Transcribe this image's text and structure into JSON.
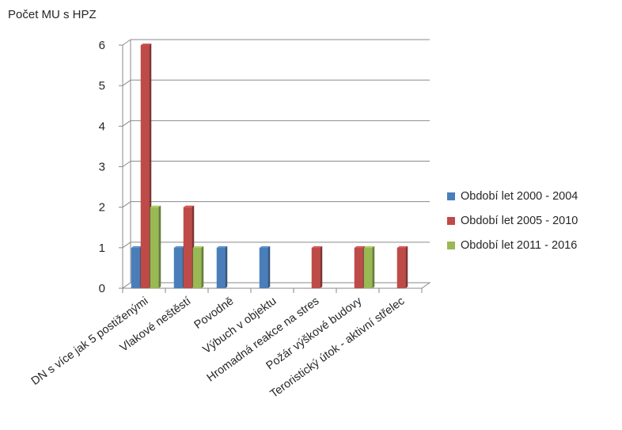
{
  "chart_data": {
    "type": "bar",
    "ylabel": "Počet MU s HPZ",
    "ylim": [
      0,
      6
    ],
    "yticks": [
      "0",
      "1",
      "2",
      "3",
      "4",
      "5",
      "6"
    ],
    "grid": true,
    "legend_position": "right",
    "categories": [
      "DN s více jak 5 postiženými",
      "Vlakové neštěstí",
      "Povodně",
      "Výbuch v objektu",
      "Hromadná reakce na stres",
      "Požár výškové budovy",
      "Teroristický útok - aktivní střelec"
    ],
    "series": [
      {
        "name": "Období let 2000 - 2004",
        "color": "#4a7ebb",
        "values": [
          1,
          1,
          1,
          1,
          0,
          0,
          0
        ]
      },
      {
        "name": "Období let 2005 - 2010",
        "color": "#be4b48",
        "values": [
          6,
          2,
          0,
          0,
          1,
          1,
          1
        ]
      },
      {
        "name": "Období let 2011 - 2016",
        "color": "#98b954",
        "values": [
          2,
          1,
          0,
          0,
          0,
          1,
          0
        ]
      }
    ]
  }
}
